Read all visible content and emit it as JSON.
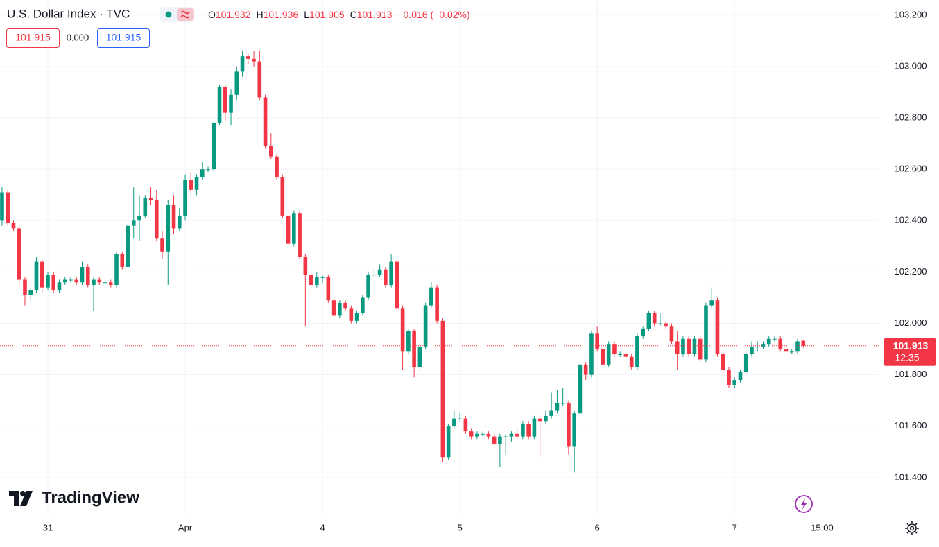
{
  "header": {
    "title": "U.S. Dollar Index · TVC",
    "ohlc": [
      {
        "label": "O",
        "value": "101.932"
      },
      {
        "label": "H",
        "value": "101.936"
      },
      {
        "label": "L",
        "value": "101.905"
      },
      {
        "label": "C",
        "value": "101.913"
      }
    ],
    "change": "−0.016 (−0.02%)",
    "sell": "101.915",
    "spread": "0.000",
    "buy": "101.915",
    "logo": "TradingView"
  },
  "chart_data": {
    "type": "candlestick",
    "up_color": "#089981",
    "down_color": "#f23645",
    "grid": true,
    "ohlc": [
      [
        102.4,
        102.53,
        102.38,
        102.51
      ],
      [
        102.51,
        102.52,
        102.38,
        102.39
      ],
      [
        102.39,
        102.4,
        102.36,
        102.37
      ],
      [
        102.37,
        102.38,
        102.15,
        102.17
      ],
      [
        102.17,
        102.18,
        102.07,
        102.11
      ],
      [
        102.11,
        102.14,
        102.09,
        102.13
      ],
      [
        102.13,
        102.26,
        102.12,
        102.24
      ],
      [
        102.24,
        102.25,
        102.12,
        102.14
      ],
      [
        102.14,
        102.2,
        102.13,
        102.19
      ],
      [
        102.19,
        102.2,
        102.12,
        102.13
      ],
      [
        102.13,
        102.17,
        102.12,
        102.16
      ],
      [
        102.16,
        102.18,
        102.15,
        102.17
      ],
      [
        102.17,
        102.18,
        102.16,
        102.17
      ],
      [
        102.17,
        102.18,
        102.15,
        102.16
      ],
      [
        102.16,
        102.24,
        102.15,
        102.22
      ],
      [
        102.22,
        102.23,
        102.14,
        102.15
      ],
      [
        102.15,
        102.18,
        102.05,
        102.17
      ],
      [
        102.17,
        102.18,
        102.15,
        102.16
      ],
      [
        102.16,
        102.17,
        102.15,
        102.16
      ],
      [
        102.16,
        102.17,
        102.14,
        102.15
      ],
      [
        102.15,
        102.28,
        102.14,
        102.27
      ],
      [
        102.27,
        102.28,
        102.21,
        102.22
      ],
      [
        102.22,
        102.42,
        102.21,
        102.38
      ],
      [
        102.38,
        102.53,
        102.33,
        102.4
      ],
      [
        102.4,
        102.5,
        102.32,
        102.42
      ],
      [
        102.42,
        102.5,
        102.41,
        102.49
      ],
      [
        102.49,
        102.53,
        102.46,
        102.48
      ],
      [
        102.48,
        102.52,
        102.32,
        102.33
      ],
      [
        102.33,
        102.36,
        102.25,
        102.28
      ],
      [
        102.28,
        102.48,
        102.15,
        102.46
      ],
      [
        102.46,
        102.5,
        102.35,
        102.37
      ],
      [
        102.37,
        102.45,
        102.36,
        102.42
      ],
      [
        102.42,
        102.58,
        102.4,
        102.56
      ],
      [
        102.56,
        102.59,
        102.5,
        102.52
      ],
      [
        102.52,
        102.58,
        102.5,
        102.57
      ],
      [
        102.57,
        102.63,
        102.56,
        102.6
      ],
      [
        102.6,
        102.61,
        102.59,
        102.6
      ],
      [
        102.6,
        102.79,
        102.59,
        102.78
      ],
      [
        102.78,
        102.93,
        102.77,
        102.92
      ],
      [
        102.92,
        102.93,
        102.79,
        102.82
      ],
      [
        102.82,
        102.91,
        102.77,
        102.89
      ],
      [
        102.89,
        103.0,
        102.87,
        102.98
      ],
      [
        102.98,
        103.06,
        102.96,
        103.04
      ],
      [
        103.04,
        103.05,
        103.01,
        103.03
      ],
      [
        103.03,
        103.06,
        103.0,
        103.02
      ],
      [
        103.02,
        103.06,
        102.87,
        102.88
      ],
      [
        102.88,
        102.89,
        102.68,
        102.69
      ],
      [
        102.69,
        102.74,
        102.64,
        102.65
      ],
      [
        102.65,
        102.66,
        102.56,
        102.57
      ],
      [
        102.57,
        102.58,
        102.41,
        102.42
      ],
      [
        102.42,
        102.45,
        102.3,
        102.31
      ],
      [
        102.31,
        102.44,
        102.3,
        102.43
      ],
      [
        102.43,
        102.44,
        102.25,
        102.26
      ],
      [
        102.26,
        102.27,
        101.99,
        102.19
      ],
      [
        102.19,
        102.2,
        102.13,
        102.15
      ],
      [
        102.15,
        102.2,
        102.14,
        102.18
      ],
      [
        102.18,
        102.19,
        102.16,
        102.18
      ],
      [
        102.18,
        102.19,
        102.08,
        102.09
      ],
      [
        102.09,
        102.1,
        102.02,
        102.03
      ],
      [
        102.03,
        102.09,
        102.02,
        102.08
      ],
      [
        102.08,
        102.09,
        102.05,
        102.06
      ],
      [
        102.06,
        102.07,
        102.0,
        102.01
      ],
      [
        102.01,
        102.05,
        102.0,
        102.04
      ],
      [
        102.04,
        102.11,
        102.03,
        102.1
      ],
      [
        102.1,
        102.2,
        102.09,
        102.19
      ],
      [
        102.19,
        102.21,
        102.18,
        102.19
      ],
      [
        102.19,
        102.23,
        102.18,
        102.21
      ],
      [
        102.21,
        102.22,
        102.14,
        102.15
      ],
      [
        102.15,
        102.27,
        102.14,
        102.24
      ],
      [
        102.24,
        102.25,
        102.05,
        102.06
      ],
      [
        102.06,
        102.07,
        101.82,
        101.89
      ],
      [
        101.89,
        101.98,
        101.88,
        101.97
      ],
      [
        101.97,
        101.98,
        101.79,
        101.83
      ],
      [
        101.83,
        101.92,
        101.82,
        101.91
      ],
      [
        101.91,
        102.08,
        101.9,
        102.07
      ],
      [
        102.07,
        102.16,
        102.06,
        102.14
      ],
      [
        102.14,
        102.15,
        102.0,
        102.01
      ],
      [
        102.01,
        102.02,
        101.46,
        101.48
      ],
      [
        101.48,
        101.61,
        101.47,
        101.6
      ],
      [
        101.6,
        101.66,
        101.59,
        101.63
      ],
      [
        101.63,
        101.65,
        101.62,
        101.63
      ],
      [
        101.63,
        101.64,
        101.57,
        101.58
      ],
      [
        101.58,
        101.59,
        101.55,
        101.56
      ],
      [
        101.56,
        101.58,
        101.55,
        101.57
      ],
      [
        101.57,
        101.58,
        101.56,
        101.57
      ],
      [
        101.57,
        101.58,
        101.55,
        101.56
      ],
      [
        101.56,
        101.57,
        101.52,
        101.53
      ],
      [
        101.53,
        101.57,
        101.44,
        101.56
      ],
      [
        101.56,
        101.57,
        101.49,
        101.56
      ],
      [
        101.56,
        101.58,
        101.54,
        101.57
      ],
      [
        101.57,
        101.59,
        101.55,
        101.56
      ],
      [
        101.56,
        101.62,
        101.55,
        101.61
      ],
      [
        101.61,
        101.62,
        101.55,
        101.56
      ],
      [
        101.56,
        101.64,
        101.55,
        101.63
      ],
      [
        101.63,
        101.64,
        101.48,
        101.62
      ],
      [
        101.62,
        101.66,
        101.61,
        101.64
      ],
      [
        101.64,
        101.73,
        101.63,
        101.66
      ],
      [
        101.66,
        101.74,
        101.65,
        101.69
      ],
      [
        101.69,
        101.75,
        101.68,
        101.69
      ],
      [
        101.69,
        101.7,
        101.49,
        101.52
      ],
      [
        101.52,
        101.66,
        101.42,
        101.65
      ],
      [
        101.65,
        101.85,
        101.64,
        101.84
      ],
      [
        101.84,
        101.85,
        101.78,
        101.8
      ],
      [
        101.8,
        101.97,
        101.79,
        101.96
      ],
      [
        101.96,
        101.99,
        101.89,
        101.9
      ],
      [
        101.9,
        101.91,
        101.83,
        101.84
      ],
      [
        101.84,
        101.93,
        101.83,
        101.92
      ],
      [
        101.92,
        101.93,
        101.87,
        101.88
      ],
      [
        101.88,
        101.89,
        101.87,
        101.88
      ],
      [
        101.88,
        101.89,
        101.86,
        101.87
      ],
      [
        101.87,
        101.88,
        101.82,
        101.83
      ],
      [
        101.83,
        101.96,
        101.82,
        101.95
      ],
      [
        101.95,
        101.99,
        101.94,
        101.98
      ],
      [
        101.98,
        102.05,
        101.97,
        102.04
      ],
      [
        102.04,
        102.05,
        101.99,
        102.0
      ],
      [
        102.0,
        102.04,
        101.99,
        102.0
      ],
      [
        102.0,
        102.01,
        101.98,
        101.99
      ],
      [
        101.99,
        102.0,
        101.92,
        101.93
      ],
      [
        101.93,
        101.97,
        101.82,
        101.88
      ],
      [
        101.88,
        101.95,
        101.87,
        101.94
      ],
      [
        101.94,
        101.95,
        101.87,
        101.88
      ],
      [
        101.88,
        101.95,
        101.87,
        101.94
      ],
      [
        101.94,
        101.95,
        101.85,
        101.86
      ],
      [
        101.86,
        102.08,
        101.85,
        102.07
      ],
      [
        102.07,
        102.14,
        102.06,
        102.09
      ],
      [
        102.09,
        102.1,
        101.87,
        101.88
      ],
      [
        101.88,
        101.89,
        101.81,
        101.82
      ],
      [
        101.82,
        101.83,
        101.75,
        101.76
      ],
      [
        101.76,
        101.79,
        101.75,
        101.78
      ],
      [
        101.78,
        101.82,
        101.77,
        101.81
      ],
      [
        101.81,
        101.89,
        101.8,
        101.88
      ],
      [
        101.88,
        101.93,
        101.87,
        101.91
      ],
      [
        101.91,
        101.93,
        101.89,
        101.91
      ],
      [
        101.91,
        101.93,
        101.9,
        101.92
      ],
      [
        101.92,
        101.95,
        101.91,
        101.94
      ],
      [
        101.94,
        101.95,
        101.93,
        101.94
      ],
      [
        101.94,
        101.95,
        101.89,
        101.9
      ],
      [
        101.9,
        101.91,
        101.88,
        101.89
      ],
      [
        101.89,
        101.9,
        101.88,
        101.89
      ],
      [
        101.89,
        101.94,
        101.88,
        101.93
      ],
      [
        101.932,
        101.936,
        101.905,
        101.913
      ]
    ],
    "xlim": [
      -0.36,
      153.3
    ],
    "xticks": [
      {
        "value": 8,
        "label": "31"
      },
      {
        "value": 32,
        "label": "Apr"
      },
      {
        "value": 56,
        "label": "4"
      },
      {
        "value": 80,
        "label": "5"
      },
      {
        "value": 104,
        "label": "6"
      },
      {
        "value": 128,
        "label": "7"
      },
      {
        "value": 143.3,
        "label": "15:00"
      }
    ],
    "ylim": [
      101.262,
      103.259
    ],
    "yticks": [
      {
        "value": 101.4,
        "label": "101.400"
      },
      {
        "value": 101.6,
        "label": "101.600"
      },
      {
        "value": 101.8,
        "label": "101.800"
      },
      {
        "value": 102.0,
        "label": "102.000"
      },
      {
        "value": 102.2,
        "label": "102.200"
      },
      {
        "value": 102.4,
        "label": "102.400"
      },
      {
        "value": 102.6,
        "label": "102.600"
      },
      {
        "value": 102.8,
        "label": "102.800"
      },
      {
        "value": 103.0,
        "label": "103.000"
      },
      {
        "value": 103.2,
        "label": "103.200"
      }
    ],
    "last_price": {
      "value": 101.913,
      "label": "101.913"
    },
    "countdown": "12:35"
  }
}
